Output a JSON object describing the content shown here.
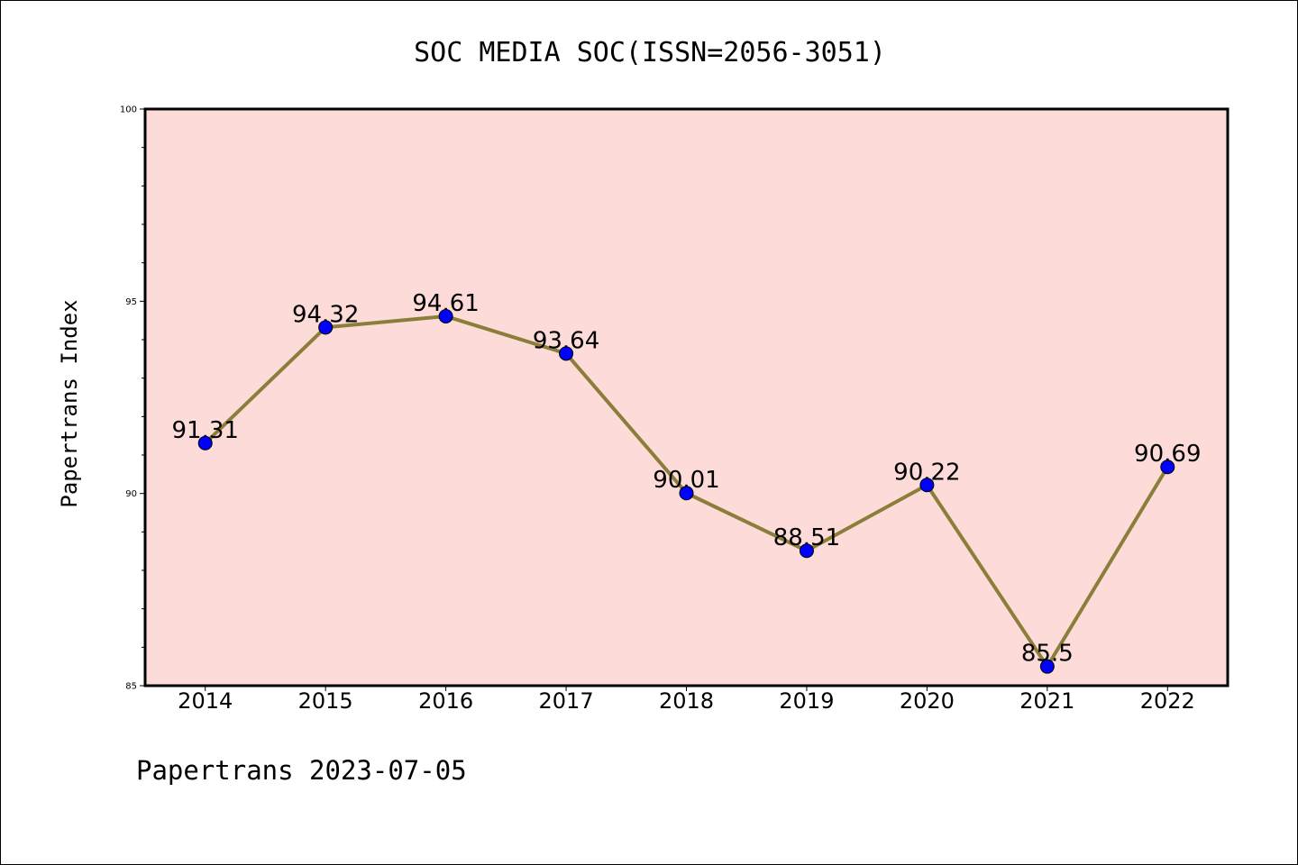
{
  "chart_data": {
    "type": "line",
    "title": "SOC MEDIA SOC(ISSN=2056-3051)",
    "xlabel": "",
    "ylabel": "Papertrans Index",
    "categories": [
      "2014",
      "2015",
      "2016",
      "2017",
      "2018",
      "2019",
      "2020",
      "2021",
      "2022"
    ],
    "values": [
      91.31,
      94.32,
      94.61,
      93.64,
      90.01,
      88.51,
      90.22,
      85.5,
      90.69
    ],
    "data_labels": [
      "91.31",
      "94.32",
      "94.61",
      "93.64",
      "90.01",
      "88.51",
      "90.22",
      "85.5",
      "90.69"
    ],
    "ylim": [
      85,
      100
    ],
    "yticks": [
      "85",
      "90",
      "95",
      "100"
    ],
    "grid": false,
    "legend": "none",
    "colors": {
      "plot_background": "#fddbd9",
      "line": "#8b7d3a",
      "marker": "#0000ff",
      "axis": "#000000"
    }
  },
  "footer": {
    "text": "Papertrans 2023-07-05"
  }
}
